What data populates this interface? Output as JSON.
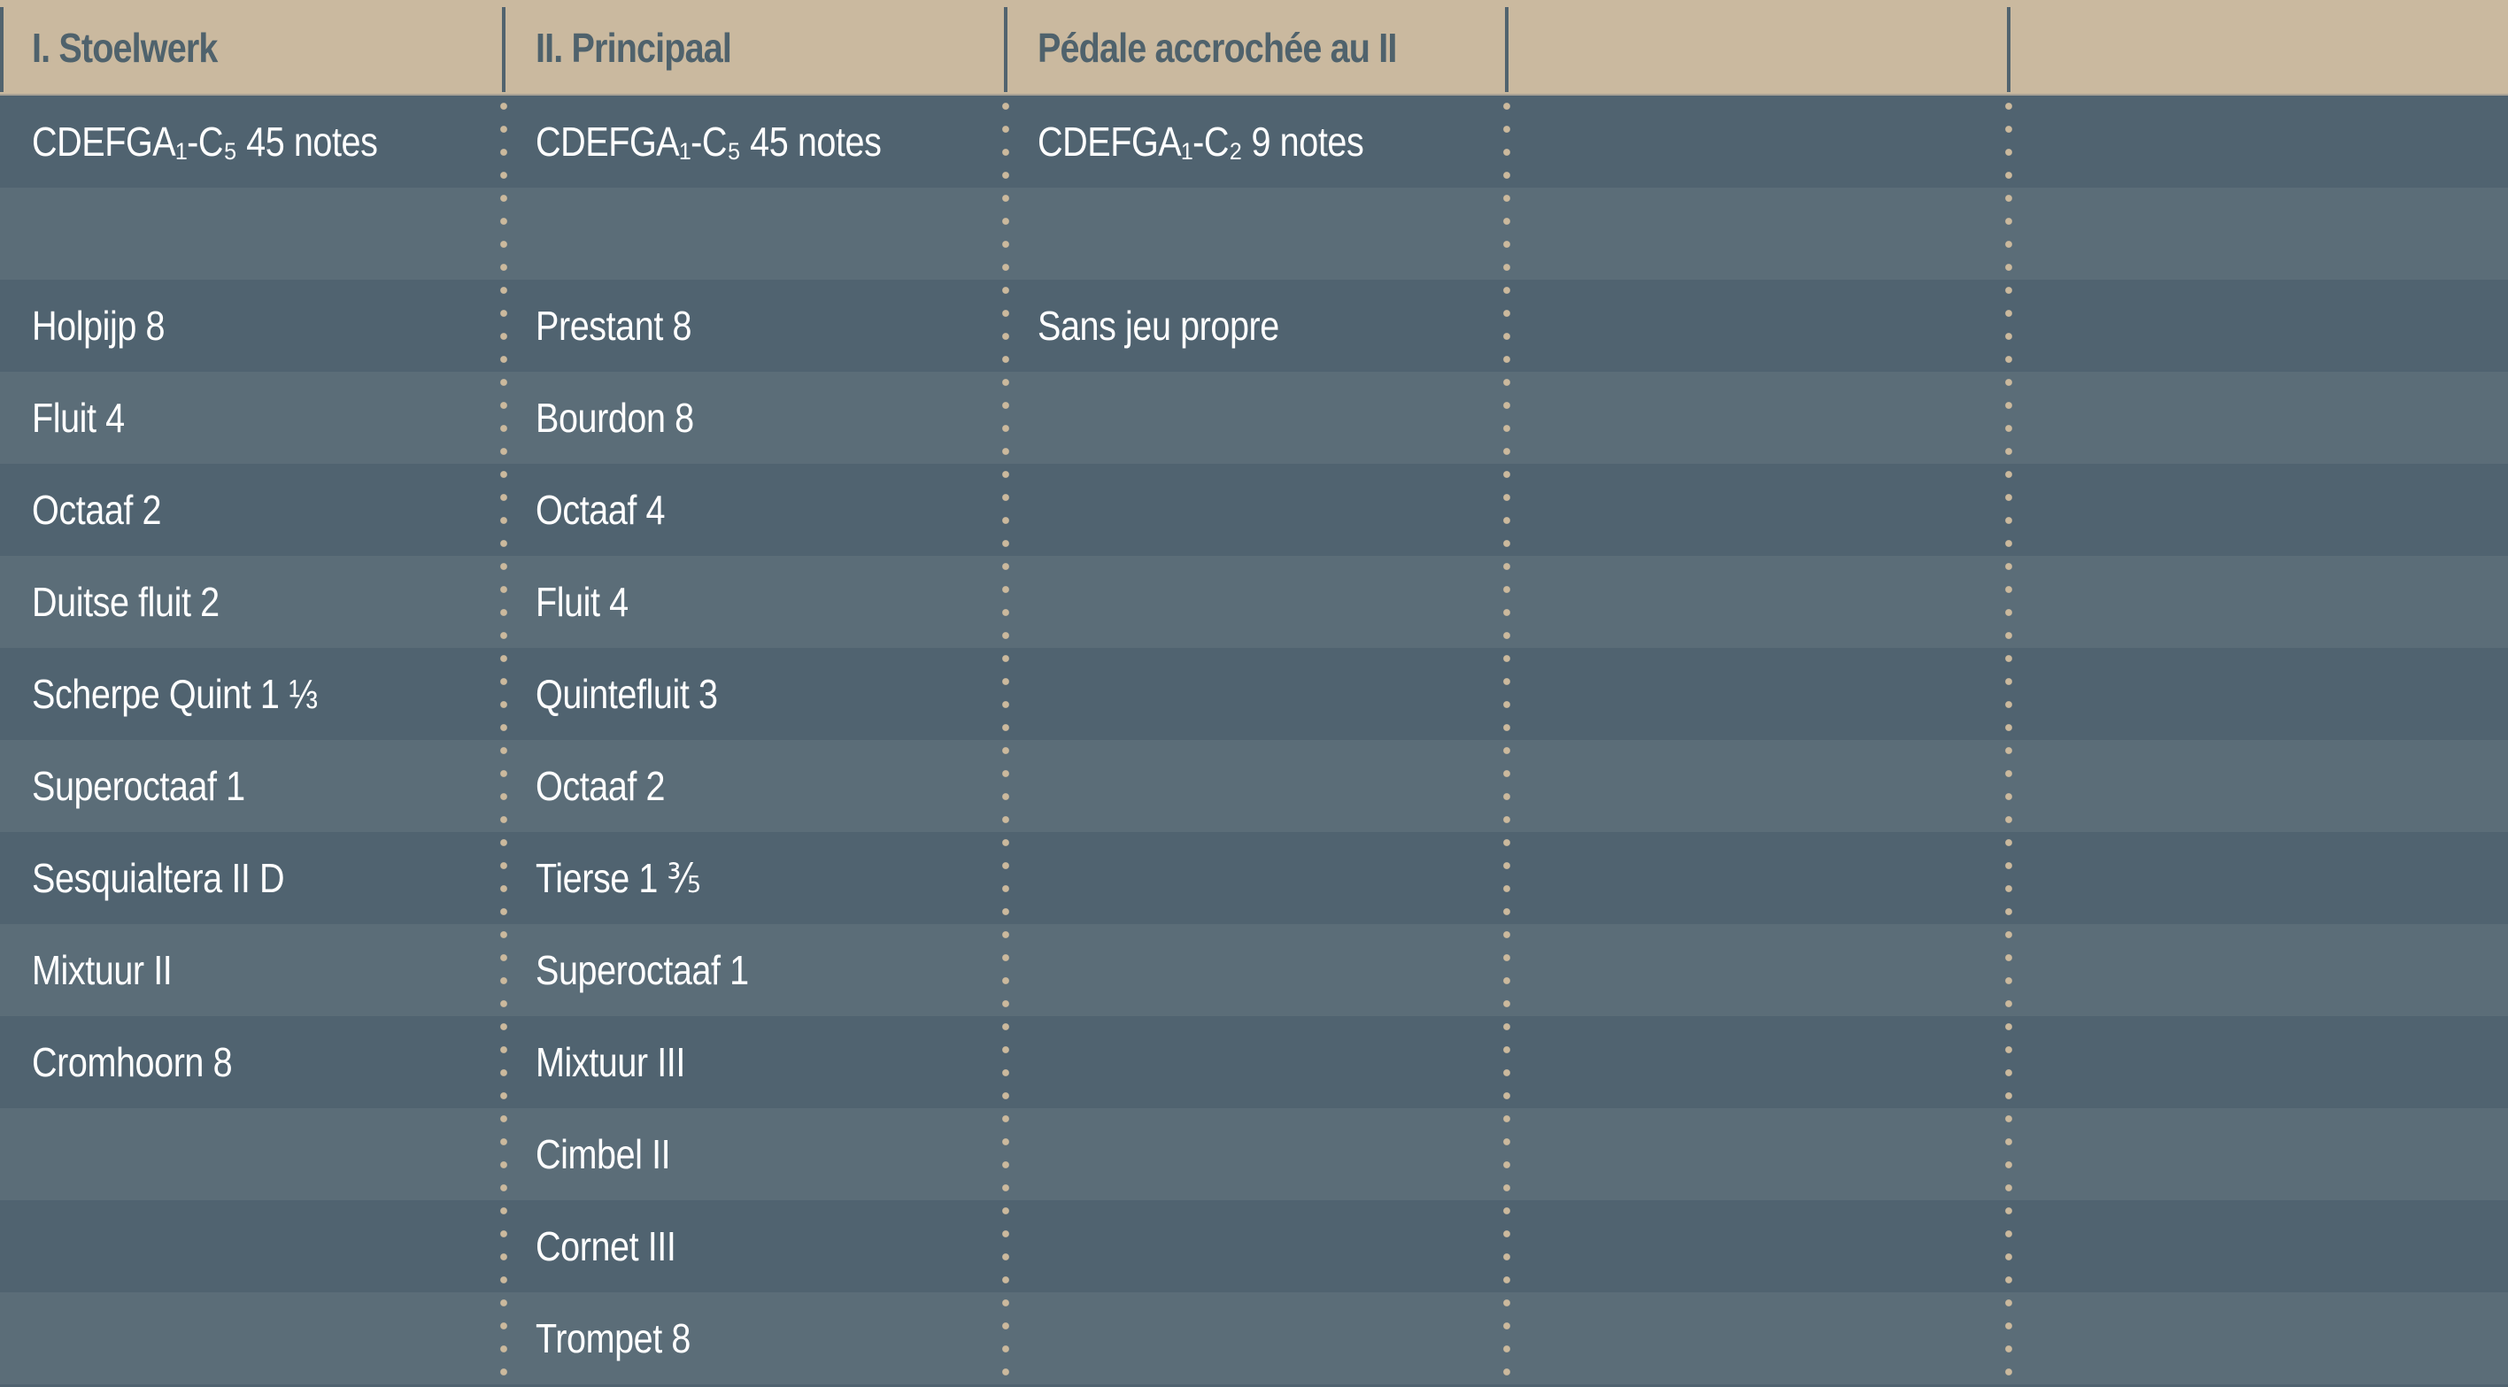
{
  "columns": [
    {
      "header": "I. Stoelwerk",
      "rows": [
        "CDEFGA₁-C₅  45 notes",
        "",
        "Holpijp 8",
        "Fluit 4",
        "Octaaf 2",
        "Duitse fluit 2",
        "Scherpe Quint 1 ⅓",
        "Superoctaaf 1",
        "Sesquialtera II D",
        "Mixtuur II",
        "Cromhoorn 8",
        "",
        "",
        ""
      ]
    },
    {
      "header": "II. Principaal",
      "rows": [
        "CDEFGA₁-C₅  45 notes",
        "",
        "Prestant 8",
        "Bourdon 8",
        "Octaaf 4",
        "Fluit 4",
        "Quintefluit 3",
        "Octaaf 2",
        "Tierse 1 ⅗",
        "Superoctaaf 1",
        "Mixtuur III",
        "Cimbel II",
        "Cornet III",
        "Trompet 8"
      ]
    },
    {
      "header": "Pédale accrochée au II",
      "rows": [
        "CDEFGA₁-C₂  9 notes",
        "",
        "Sans jeu propre",
        "",
        "",
        "",
        "",
        "",
        "",
        "",
        "",
        "",
        "",
        ""
      ]
    },
    {
      "header": "",
      "rows": [
        "",
        "",
        "",
        "",
        "",
        "",
        "",
        "",
        "",
        "",
        "",
        "",
        "",
        ""
      ]
    },
    {
      "header": "",
      "rows": [
        "",
        "",
        "",
        "",
        "",
        "",
        "",
        "",
        "",
        "",
        "",
        "",
        "",
        ""
      ]
    }
  ],
  "colors": {
    "header_bg": "#cab99f",
    "header_text": "#4f626c",
    "row_dark": "#506370",
    "row_light": "#5b6d78",
    "divider_dots": "#cbb99d"
  }
}
